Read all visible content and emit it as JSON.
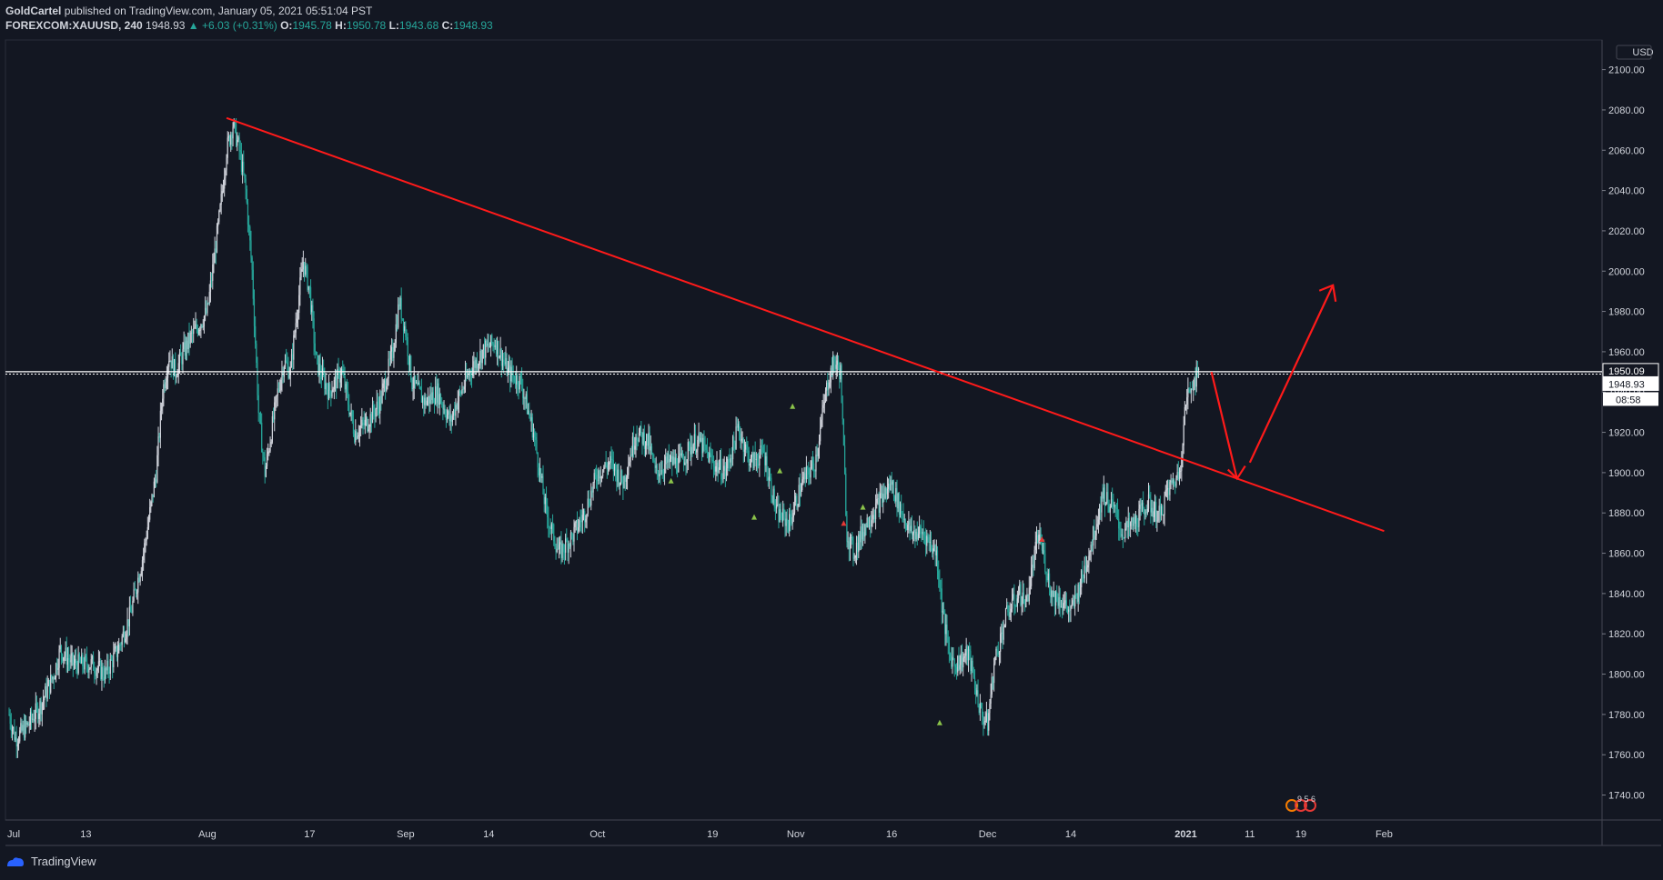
{
  "header": {
    "author": "GoldCartel",
    "published_text": "published on TradingView.com, January 05, 2021 05:51:04 PST",
    "symbol": "FOREXCOM:XAUUSD, 240",
    "last": "1948.93",
    "change": "+6.03 (+0.31%)",
    "o_label": "O:",
    "o_val": "1945.78",
    "h_label": "H:",
    "h_val": "1950.78",
    "l_label": "L:",
    "l_val": "1943.68",
    "c_label": "C:",
    "c_val": "1948.93"
  },
  "footer": {
    "brand": "TradingView"
  },
  "colors": {
    "background": "#131722",
    "up": "#d1d4dc",
    "down": "#26a69a",
    "trendline": "#ff1a1a",
    "price_line": "#ffffff",
    "grid": "#2a2e39"
  },
  "chart_data": {
    "type": "candlestick",
    "title": "FOREXCOM:XAUUSD, 240",
    "currency": "USD",
    "ylim": [
      1728,
      2110
    ],
    "y_ticks": [
      "2100.00",
      "2080.00",
      "2060.00",
      "2040.00",
      "2020.00",
      "2000.00",
      "1980.00",
      "1960.00",
      "1940.00",
      "1920.00",
      "1900.00",
      "1880.00",
      "1860.00",
      "1840.00",
      "1820.00",
      "1800.00",
      "1780.00",
      "1760.00",
      "1740.00"
    ],
    "x_ticks": [
      {
        "label": "Jul",
        "day": 0
      },
      {
        "label": "13",
        "day": 12
      },
      {
        "label": "Aug",
        "day": 31
      },
      {
        "label": "17",
        "day": 47
      },
      {
        "label": "Sep",
        "day": 62
      },
      {
        "label": "14",
        "day": 75
      },
      {
        "label": "Oct",
        "day": 92
      },
      {
        "label": "19",
        "day": 110
      },
      {
        "label": "Nov",
        "day": 123
      },
      {
        "label": "16",
        "day": 138
      },
      {
        "label": "Dec",
        "day": 153
      },
      {
        "label": "14",
        "day": 166
      },
      {
        "label": "2021",
        "day": 184
      },
      {
        "label": "11",
        "day": 194
      },
      {
        "label": "19",
        "day": 202
      },
      {
        "label": "Feb",
        "day": 215
      }
    ],
    "price_points": [
      {
        "day": 0,
        "price": 1780
      },
      {
        "day": 1,
        "price": 1768
      },
      {
        "day": 3,
        "price": 1775
      },
      {
        "day": 5,
        "price": 1785
      },
      {
        "day": 7,
        "price": 1800
      },
      {
        "day": 8,
        "price": 1812
      },
      {
        "day": 10,
        "price": 1805
      },
      {
        "day": 13,
        "price": 1805
      },
      {
        "day": 15,
        "price": 1800
      },
      {
        "day": 17,
        "price": 1812
      },
      {
        "day": 19,
        "price": 1830
      },
      {
        "day": 21,
        "price": 1860
      },
      {
        "day": 23,
        "price": 1900
      },
      {
        "day": 24,
        "price": 1940
      },
      {
        "day": 25,
        "price": 1958
      },
      {
        "day": 26,
        "price": 1950
      },
      {
        "day": 28,
        "price": 1965
      },
      {
        "day": 30,
        "price": 1975
      },
      {
        "day": 31,
        "price": 1980
      },
      {
        "day": 33,
        "price": 2030
      },
      {
        "day": 34,
        "price": 2060
      },
      {
        "day": 35,
        "price": 2073
      },
      {
        "day": 36,
        "price": 2060
      },
      {
        "day": 37,
        "price": 2040
      },
      {
        "day": 38,
        "price": 2000
      },
      {
        "day": 39,
        "price": 1930
      },
      {
        "day": 40,
        "price": 1900
      },
      {
        "day": 41,
        "price": 1920
      },
      {
        "day": 42,
        "price": 1940
      },
      {
        "day": 43,
        "price": 1955
      },
      {
        "day": 44,
        "price": 1950
      },
      {
        "day": 45,
        "price": 1980
      },
      {
        "day": 46,
        "price": 2005
      },
      {
        "day": 47,
        "price": 1990
      },
      {
        "day": 48,
        "price": 1955
      },
      {
        "day": 50,
        "price": 1940
      },
      {
        "day": 52,
        "price": 1950
      },
      {
        "day": 54,
        "price": 1920
      },
      {
        "day": 56,
        "price": 1925
      },
      {
        "day": 58,
        "price": 1935
      },
      {
        "day": 60,
        "price": 1960
      },
      {
        "day": 61,
        "price": 1985
      },
      {
        "day": 62,
        "price": 1970
      },
      {
        "day": 63,
        "price": 1945
      },
      {
        "day": 65,
        "price": 1935
      },
      {
        "day": 67,
        "price": 1940
      },
      {
        "day": 69,
        "price": 1925
      },
      {
        "day": 70,
        "price": 1935
      },
      {
        "day": 72,
        "price": 1950
      },
      {
        "day": 74,
        "price": 1960
      },
      {
        "day": 76,
        "price": 1965
      },
      {
        "day": 78,
        "price": 1950
      },
      {
        "day": 80,
        "price": 1945
      },
      {
        "day": 82,
        "price": 1920
      },
      {
        "day": 84,
        "price": 1880
      },
      {
        "day": 86,
        "price": 1860
      },
      {
        "day": 88,
        "price": 1868
      },
      {
        "day": 90,
        "price": 1880
      },
      {
        "day": 92,
        "price": 1900
      },
      {
        "day": 94,
        "price": 1905
      },
      {
        "day": 96,
        "price": 1895
      },
      {
        "day": 98,
        "price": 1920
      },
      {
        "day": 100,
        "price": 1915
      },
      {
        "day": 101,
        "price": 1900
      },
      {
        "day": 103,
        "price": 1905
      },
      {
        "day": 105,
        "price": 1905
      },
      {
        "day": 107,
        "price": 1915
      },
      {
        "day": 108,
        "price": 1915
      },
      {
        "day": 110,
        "price": 1905
      },
      {
        "day": 112,
        "price": 1900
      },
      {
        "day": 114,
        "price": 1922
      },
      {
        "day": 116,
        "price": 1905
      },
      {
        "day": 118,
        "price": 1910
      },
      {
        "day": 120,
        "price": 1880
      },
      {
        "day": 122,
        "price": 1875
      },
      {
        "day": 124,
        "price": 1895
      },
      {
        "day": 126,
        "price": 1905
      },
      {
        "day": 128,
        "price": 1945
      },
      {
        "day": 129,
        "price": 1955
      },
      {
        "day": 130,
        "price": 1950
      },
      {
        "day": 131,
        "price": 1870
      },
      {
        "day": 132,
        "price": 1860
      },
      {
        "day": 134,
        "price": 1875
      },
      {
        "day": 136,
        "price": 1885
      },
      {
        "day": 138,
        "price": 1895
      },
      {
        "day": 139,
        "price": 1885
      },
      {
        "day": 141,
        "price": 1870
      },
      {
        "day": 143,
        "price": 1870
      },
      {
        "day": 145,
        "price": 1860
      },
      {
        "day": 146,
        "price": 1830
      },
      {
        "day": 147,
        "price": 1810
      },
      {
        "day": 148,
        "price": 1805
      },
      {
        "day": 150,
        "price": 1810
      },
      {
        "day": 152,
        "price": 1780
      },
      {
        "day": 153,
        "price": 1775
      },
      {
        "day": 154,
        "price": 1805
      },
      {
        "day": 156,
        "price": 1830
      },
      {
        "day": 158,
        "price": 1840
      },
      {
        "day": 159,
        "price": 1835
      },
      {
        "day": 161,
        "price": 1870
      },
      {
        "day": 163,
        "price": 1840
      },
      {
        "day": 165,
        "price": 1835
      },
      {
        "day": 166,
        "price": 1830
      },
      {
        "day": 168,
        "price": 1850
      },
      {
        "day": 170,
        "price": 1875
      },
      {
        "day": 171,
        "price": 1890
      },
      {
        "day": 172,
        "price": 1885
      },
      {
        "day": 173,
        "price": 1880
      },
      {
        "day": 174,
        "price": 1870
      },
      {
        "day": 176,
        "price": 1875
      },
      {
        "day": 177,
        "price": 1880
      },
      {
        "day": 178,
        "price": 1885
      },
      {
        "day": 180,
        "price": 1878
      },
      {
        "day": 181,
        "price": 1890
      },
      {
        "day": 183,
        "price": 1900
      },
      {
        "day": 184,
        "price": 1935
      },
      {
        "day": 185,
        "price": 1945
      },
      {
        "day": 186,
        "price": 1949
      }
    ],
    "current_price": 1948.93,
    "price_labels": [
      {
        "text": "1950.09",
        "price": 1950.09
      },
      {
        "text": "1948.93",
        "price": 1948.93
      }
    ],
    "countdown": "08:58",
    "horizontal_level": 1950.09,
    "annotations": {
      "trendline": [
        {
          "day": 34,
          "price": 2076
        },
        {
          "day": 215,
          "price": 1871
        }
      ],
      "projection": [
        {
          "day": 188,
          "price": 1950
        },
        {
          "day": 192,
          "price": 1897
        },
        {
          "day": 194,
          "price": 1905
        },
        {
          "day": 207,
          "price": 1993
        }
      ],
      "events_badge": "9 5 6"
    }
  }
}
